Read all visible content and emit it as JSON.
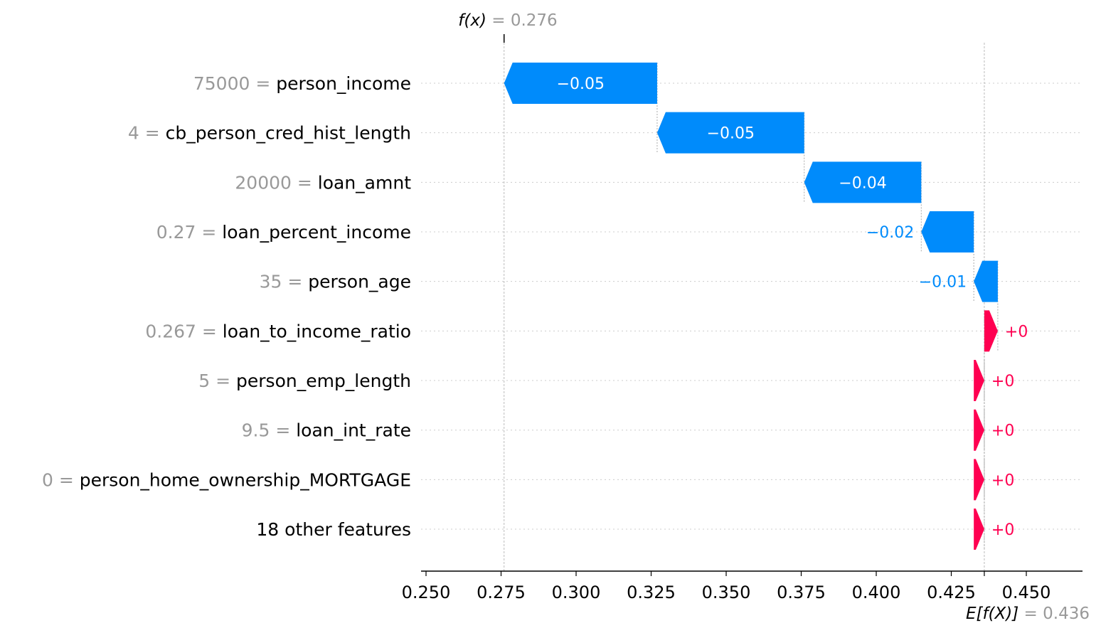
{
  "chart_data": {
    "type": "waterfall",
    "fx": {
      "symbol": "f(x)",
      "value_text": "0.276",
      "value": 0.276
    },
    "efx": {
      "symbol": "E[f(X)]",
      "value_text": "0.436",
      "value": 0.436
    },
    "xlim": [
      0.248,
      0.469
    ],
    "ticks": [
      {
        "value": 0.25,
        "label": "0.250"
      },
      {
        "value": 0.275,
        "label": "0.275"
      },
      {
        "value": 0.3,
        "label": "0.300"
      },
      {
        "value": 0.325,
        "label": "0.325"
      },
      {
        "value": 0.35,
        "label": "0.350"
      },
      {
        "value": 0.375,
        "label": "0.375"
      },
      {
        "value": 0.4,
        "label": "0.400"
      },
      {
        "value": 0.425,
        "label": "0.425"
      },
      {
        "value": 0.45,
        "label": "0.450"
      }
    ],
    "features": [
      {
        "value": "75000",
        "name": "person_income",
        "start": 0.327,
        "end": 0.276,
        "label": "−0.05"
      },
      {
        "value": "4",
        "name": "cb_person_cred_hist_length",
        "start": 0.376,
        "end": 0.327,
        "label": "−0.05"
      },
      {
        "value": "20000",
        "name": "loan_amnt",
        "start": 0.415,
        "end": 0.376,
        "label": "−0.04"
      },
      {
        "value": "0.27",
        "name": "loan_percent_income",
        "start": 0.4325,
        "end": 0.415,
        "label": "−0.02"
      },
      {
        "value": "35",
        "name": "person_age",
        "start": 0.4405,
        "end": 0.4325,
        "label": "−0.01"
      },
      {
        "value": "0.267",
        "name": "loan_to_income_ratio",
        "start": 0.436,
        "end": 0.4405,
        "label": "+0"
      },
      {
        "value": "5",
        "name": "person_emp_length",
        "start": 0.4325,
        "end": 0.436,
        "label": "+0"
      },
      {
        "value": "9.5",
        "name": "loan_int_rate",
        "start": 0.4325,
        "end": 0.436,
        "label": "+0"
      },
      {
        "value": "0",
        "name": "person_home_ownership_MORTGAGE",
        "start": 0.4325,
        "end": 0.436,
        "label": "+0"
      },
      {
        "value": "",
        "name": "18 other features",
        "start": 0.4325,
        "end": 0.436,
        "label": "+0"
      }
    ],
    "colors": {
      "negative": "#008bfb",
      "positive": "#ff0051",
      "muted": "#999999"
    }
  }
}
